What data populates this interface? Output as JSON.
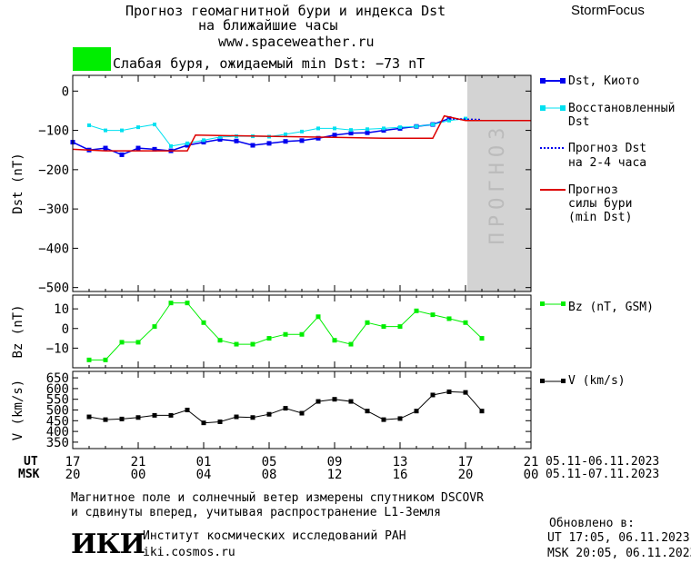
{
  "header": {
    "title_line1": "Прогноз геомагнитной бури и индекса Dst",
    "title_line2": "на ближайшие часы",
    "url": "www.spaceweather.ru",
    "brand": "StormFocus",
    "storm_text": "Слабая буря, ожидаемый min Dst: −73 nT",
    "storm_color": "#00ee00"
  },
  "legend": {
    "dst": "Dst, Киото",
    "restored_1": "Восстановленный",
    "restored_2": "Dst",
    "forecast_1": "Прогноз Dst",
    "forecast_2": "на 2-4 часа",
    "storm_1": "Прогноз",
    "storm_2": "силы бури",
    "storm_3": "(min Dst)",
    "bz": "Bz (nT, GSM)",
    "v": "V (km/s)"
  },
  "forecast_label": "ПРОГНОЗ",
  "time_axis": {
    "ut_label": "UT",
    "msk_label": "MSK",
    "ut_ticks": [
      "17",
      "21",
      "01",
      "05",
      "09",
      "13",
      "17",
      "21"
    ],
    "msk_ticks": [
      "20",
      "00",
      "04",
      "08",
      "12",
      "16",
      "20",
      "00"
    ],
    "ut_range": "05.11-06.11.2023",
    "msk_range": "05.11-07.11.2023"
  },
  "footer": {
    "note_1": "Магнитное поле и солнечный ветер измерены спутником DSCOVR",
    "note_2": "и сдвинуты вперед, учитывая распространение L1-Земля",
    "logo": "ИКИ",
    "institute": "Институт космических исследований РАН",
    "site": "iki.cosmos.ru",
    "updated_label": "Обновлено в:",
    "updated_ut": "UT  17:05, 06.11.2023",
    "updated_msk": "MSK 20:05, 06.11.2023"
  },
  "colors": {
    "dst": "#0000ee",
    "restored": "#00e0f0",
    "storm": "#dd0000",
    "bz": "#00ee00",
    "v": "#000000",
    "forecast_band": "#d3d3d3"
  },
  "chart_data": [
    {
      "type": "line",
      "ylabel": "Dst (nT)",
      "ylim": [
        -510,
        40
      ],
      "yticks": [
        0,
        -100,
        -200,
        -300,
        -400,
        -500
      ],
      "xlim": [
        0,
        28
      ],
      "forecast_region": [
        24,
        28
      ],
      "series": [
        {
          "name": "Dst, Киото",
          "x": [
            0,
            1,
            2,
            3,
            4,
            5,
            6,
            7,
            8,
            9,
            10,
            11,
            12,
            13,
            14,
            15,
            16,
            17,
            18,
            19,
            20,
            21,
            22,
            23
          ],
          "y": [
            -130,
            -150,
            -145,
            -162,
            -145,
            -148,
            -152,
            -138,
            -130,
            -123,
            -127,
            -138,
            -133,
            -128,
            -126,
            -120,
            -112,
            -107,
            -106,
            -100,
            -95,
            -90,
            -85,
            -70
          ]
        },
        {
          "name": "Восстановленный Dst",
          "x": [
            1,
            2,
            3,
            4,
            5,
            6,
            7,
            8,
            9,
            10,
            11,
            12,
            13,
            14,
            15,
            16,
            17,
            18,
            19,
            20,
            21,
            22,
            23,
            24
          ],
          "y": [
            -87,
            -100,
            -100,
            -92,
            -85,
            -140,
            -133,
            -125,
            -117,
            -115,
            -115,
            -116,
            -110,
            -103,
            -95,
            -95,
            -99,
            -97,
            -95,
            -92,
            -90,
            -85,
            -75,
            -70
          ]
        },
        {
          "name": "Прогноз Dst на 2-4 часа",
          "x": [
            23,
            24,
            25
          ],
          "y": [
            -70,
            -72,
            -73
          ]
        },
        {
          "name": "Прогноз силы бури (min Dst)",
          "x": [
            0,
            2,
            7,
            7.5,
            12,
            19,
            21,
            22,
            22.7,
            24,
            28
          ],
          "y": [
            -148,
            -152,
            -152,
            -112,
            -115,
            -120,
            -120,
            -120,
            -63,
            -75,
            -75
          ]
        }
      ]
    },
    {
      "type": "line",
      "ylabel": "Bz (nT)",
      "ylim": [
        -20,
        17
      ],
      "yticks": [
        10,
        0,
        -10
      ],
      "xlim": [
        0,
        28
      ],
      "series": [
        {
          "name": "Bz (nT, GSM)",
          "x": [
            1,
            2,
            3,
            4,
            5,
            6,
            7,
            8,
            9,
            10,
            11,
            12,
            13,
            14,
            15,
            16,
            17,
            18,
            19,
            20,
            21,
            22,
            23,
            24
          ],
          "y": [
            -16,
            -16,
            -7,
            -7,
            1,
            13,
            13,
            3,
            -6,
            -8,
            -8,
            -5,
            -3,
            -3,
            6,
            -6,
            -8,
            3,
            1,
            1,
            9,
            7,
            5,
            3
          ]
        },
        {
          "name": "Bz tail",
          "x": [
            24,
            25
          ],
          "y": [
            3,
            -5
          ]
        }
      ]
    },
    {
      "type": "line",
      "ylabel": "V (km/s)",
      "ylim": [
        320,
        680
      ],
      "yticks": [
        650,
        600,
        550,
        500,
        450,
        400,
        350
      ],
      "xlim": [
        0,
        28
      ],
      "series": [
        {
          "name": "V (km/s)",
          "x": [
            1,
            2,
            3,
            4,
            5,
            6,
            7,
            8,
            9,
            10,
            11,
            12,
            13,
            14,
            15,
            16,
            17,
            18,
            19,
            20,
            21,
            22,
            23,
            24,
            25
          ],
          "y": [
            468,
            455,
            458,
            465,
            475,
            475,
            500,
            440,
            445,
            468,
            465,
            480,
            508,
            485,
            540,
            550,
            540,
            495,
            455,
            460,
            495,
            570,
            585,
            582,
            495
          ]
        }
      ]
    }
  ]
}
